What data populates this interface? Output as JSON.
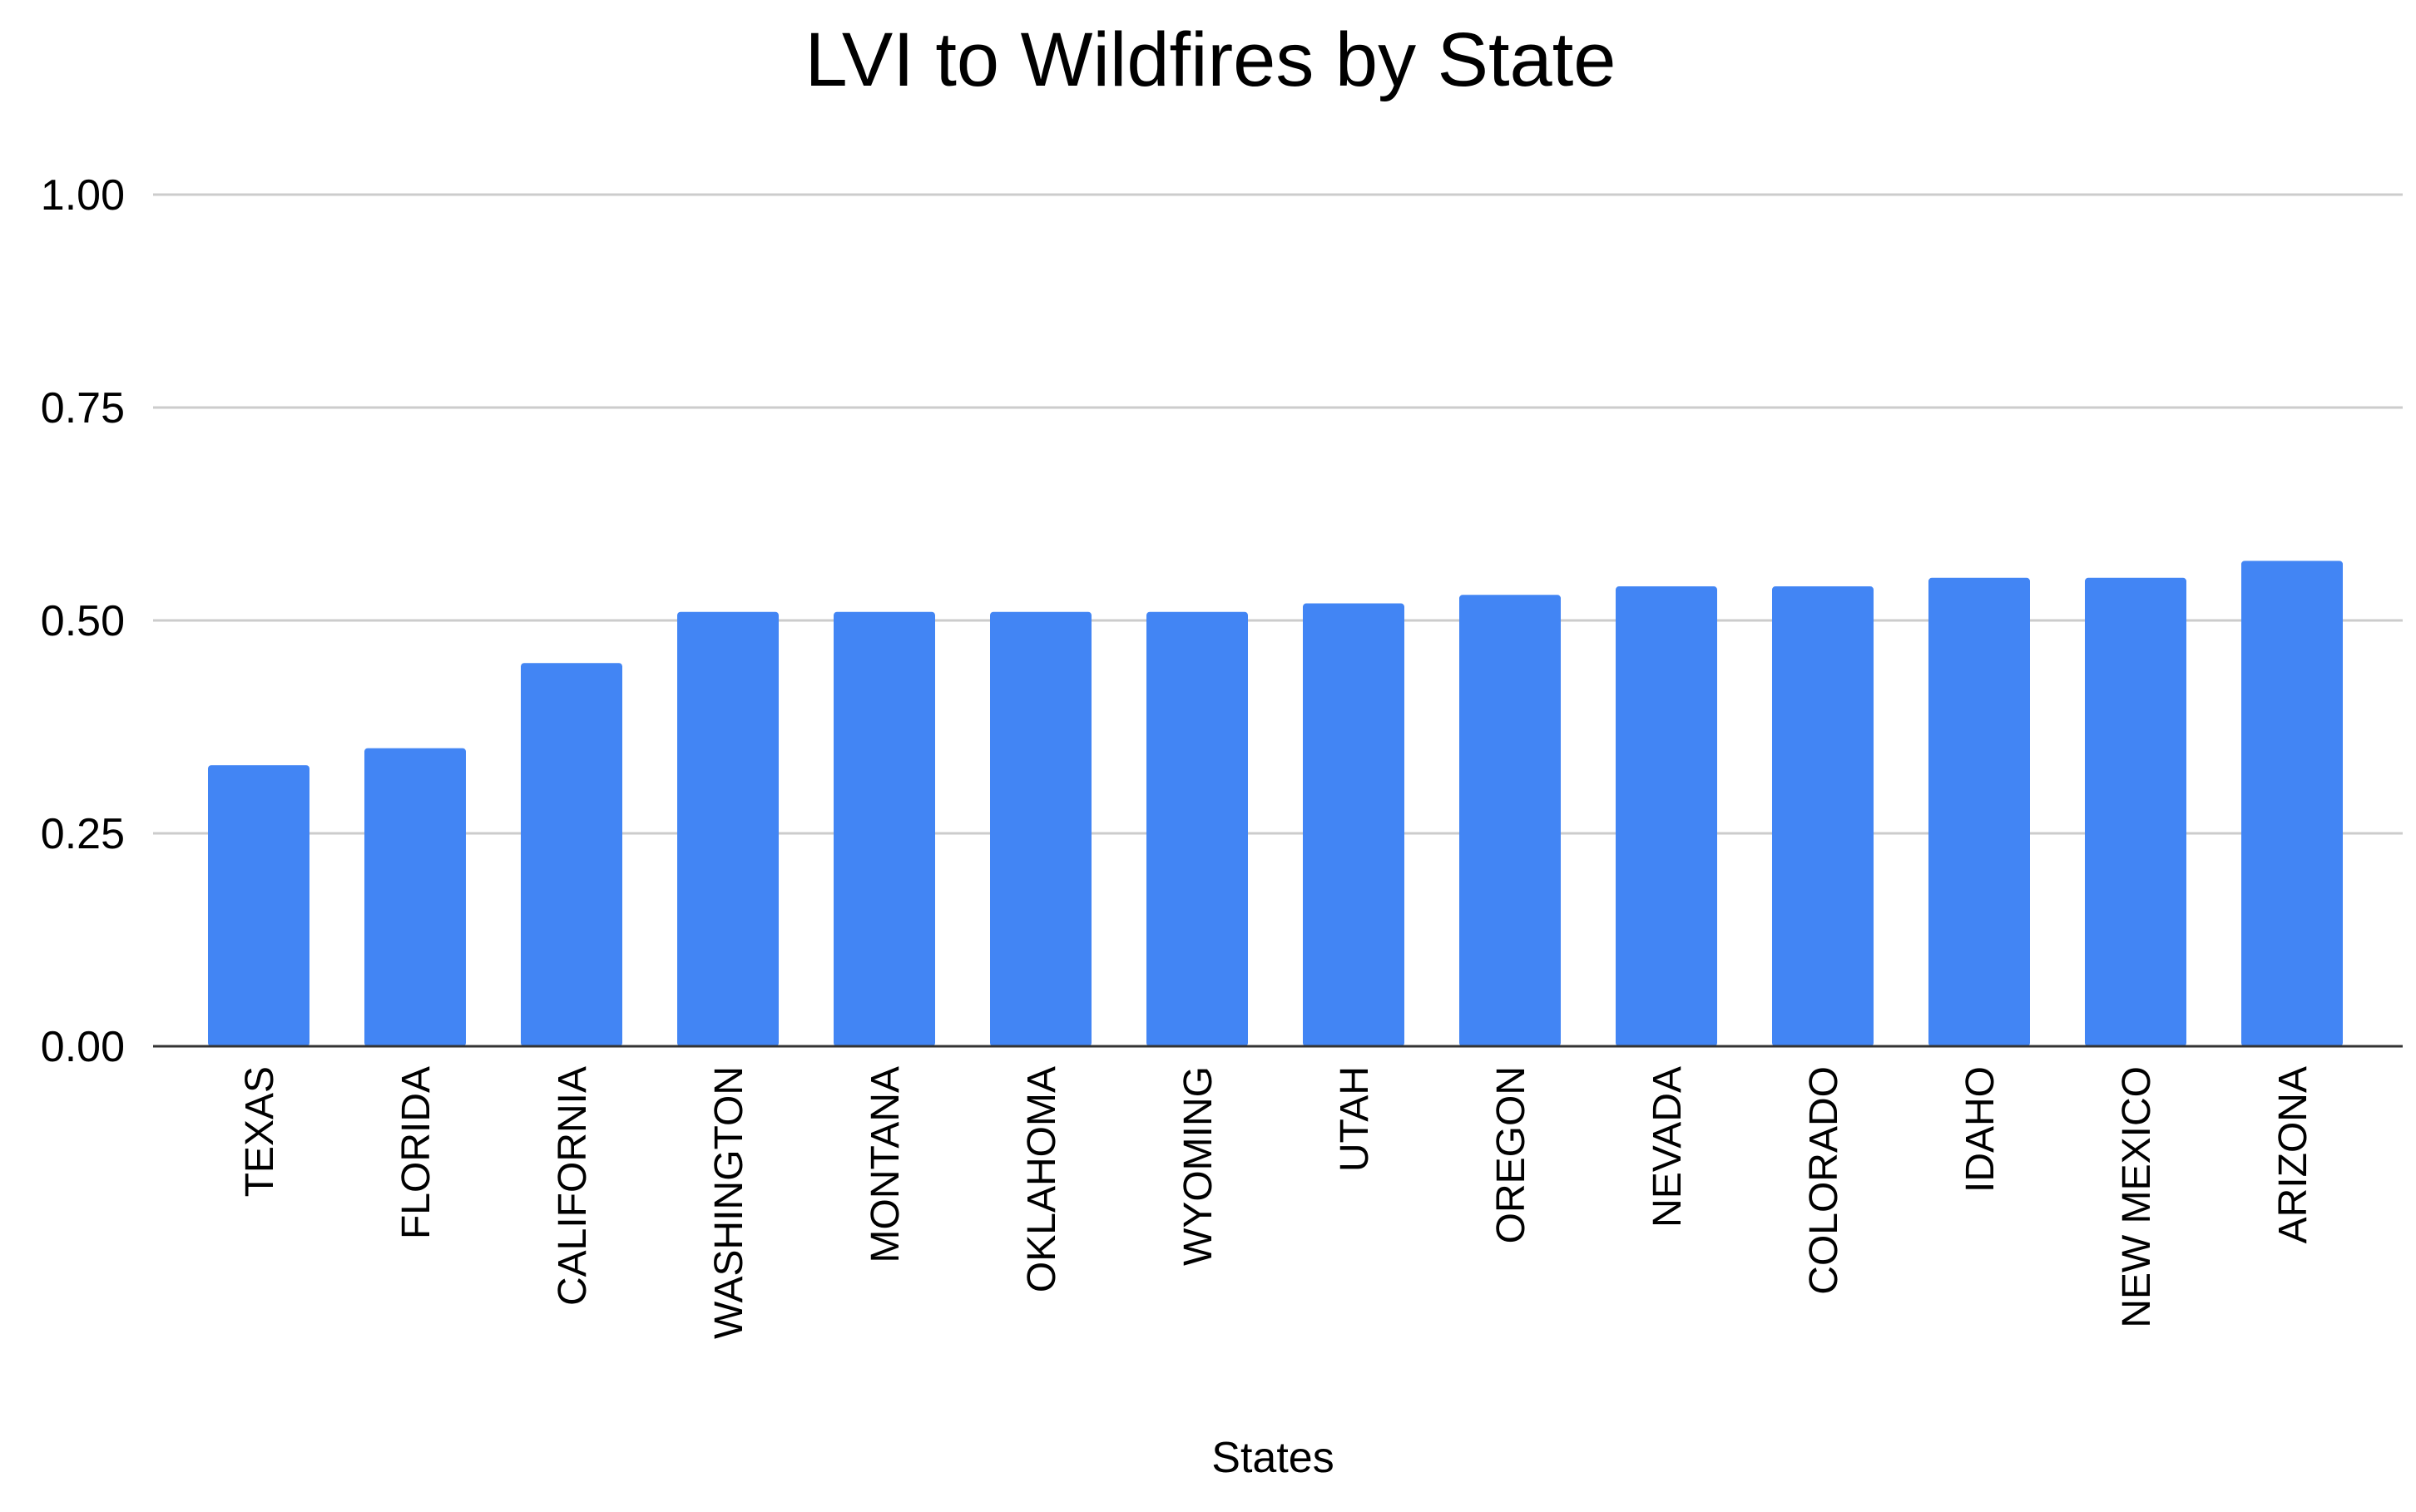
{
  "chart_data": {
    "type": "bar",
    "title": "LVI to Wildfires by State",
    "xlabel": "States",
    "ylabel": "",
    "ylim": [
      0,
      1
    ],
    "yticks": [
      "0.00",
      "0.25",
      "0.50",
      "0.75",
      "1.00"
    ],
    "grid": true,
    "legend": "none",
    "bar_color": "#4285F4",
    "categories": [
      "TEXAS",
      "FLORIDA",
      "CALIFORNIA",
      "WASHINGTON",
      "MONTANA",
      "OKLAHOMA",
      "WYOMING",
      "UTAH",
      "OREGON",
      "NEVADA",
      "COLORADO",
      "IDAHO",
      "NEW MEXICO",
      "ARIZONA"
    ],
    "values": [
      0.33,
      0.35,
      0.45,
      0.51,
      0.51,
      0.51,
      0.51,
      0.52,
      0.53,
      0.54,
      0.54,
      0.55,
      0.55,
      0.57
    ]
  }
}
